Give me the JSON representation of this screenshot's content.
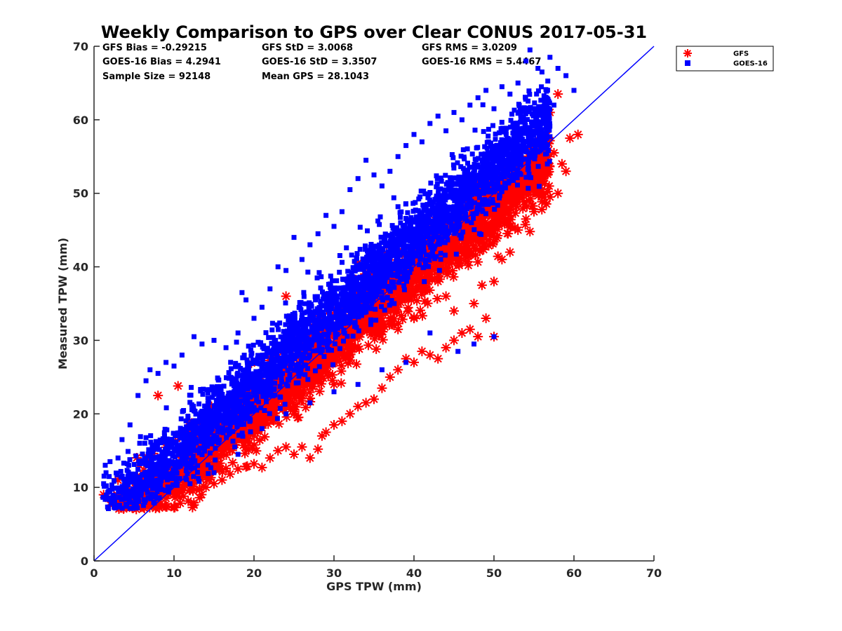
{
  "chart_data": {
    "type": "scatter",
    "title": "Weekly Comparison to GPS over Clear CONUS 2017-05-31",
    "xlabel": "GPS TPW (mm)",
    "ylabel": "Measured TPW (mm)",
    "xlim": [
      0,
      70
    ],
    "ylim": [
      0,
      70
    ],
    "xticks": [
      "0",
      "10",
      "20",
      "30",
      "40",
      "50",
      "60",
      "70"
    ],
    "yticks": [
      "0",
      "10",
      "20",
      "30",
      "40",
      "50",
      "60",
      "70"
    ],
    "grid": false,
    "legend_position": "outside-top-right",
    "reference_line": {
      "x": [
        0,
        70
      ],
      "y": [
        0,
        70
      ],
      "color": "#0000ff"
    },
    "stats": [
      [
        "GFS Bias = -0.29215",
        "GFS StD = 3.0068",
        "GFS RMS = 3.0209"
      ],
      [
        "GOES-16 Bias = 4.2941",
        "GOES-16 StD = 3.3507",
        "GOES-16 RMS = 5.4467"
      ],
      [
        "Sample Size = 92148",
        "Mean GPS = 28.1043",
        ""
      ]
    ],
    "series": [
      {
        "name": "GFS",
        "marker": "asterisk",
        "color": "#ff0000",
        "bias": -0.29215,
        "std": 3.0068,
        "points": [
          [
            1.2,
            9.0
          ],
          [
            1.8,
            8.5
          ],
          [
            2.5,
            8.2
          ],
          [
            3.0,
            11.0
          ],
          [
            3.5,
            8.6
          ],
          [
            4.0,
            9.5
          ],
          [
            4.8,
            8.0
          ],
          [
            5.5,
            7.6
          ],
          [
            6.2,
            7.3
          ],
          [
            6.8,
            8.3
          ],
          [
            7.5,
            8.8
          ],
          [
            8.2,
            9.2
          ],
          [
            9.0,
            8.5
          ],
          [
            10.0,
            9.0
          ],
          [
            11.2,
            8.8
          ],
          [
            12.0,
            9.6
          ],
          [
            12.5,
            7.6
          ],
          [
            13.2,
            8.6
          ],
          [
            14.0,
            10.0
          ],
          [
            15.0,
            10.5
          ],
          [
            16.0,
            11.0
          ],
          [
            17.0,
            11.8
          ],
          [
            18.0,
            12.5
          ],
          [
            19.0,
            12.8
          ],
          [
            20.0,
            13.2
          ],
          [
            21.0,
            12.7
          ],
          [
            22.0,
            14.0
          ],
          [
            23.0,
            15.0
          ],
          [
            24.0,
            15.5
          ],
          [
            25.0,
            14.5
          ],
          [
            26.0,
            15.5
          ],
          [
            27.0,
            14.0
          ],
          [
            28.0,
            15.2
          ],
          [
            28.5,
            17.0
          ],
          [
            29.0,
            17.5
          ],
          [
            30.0,
            18.5
          ],
          [
            31.0,
            19.0
          ],
          [
            32.0,
            20.0
          ],
          [
            33.0,
            21.0
          ],
          [
            34.0,
            21.5
          ],
          [
            35.0,
            22.0
          ],
          [
            36.0,
            23.5
          ],
          [
            37.0,
            25.0
          ],
          [
            38.0,
            26.0
          ],
          [
            39.0,
            27.5
          ],
          [
            40.0,
            27.0
          ],
          [
            41.0,
            28.5
          ],
          [
            42.0,
            28.0
          ],
          [
            43.0,
            27.5
          ],
          [
            44.0,
            29.0
          ],
          [
            45.0,
            30.0
          ],
          [
            46.0,
            31.0
          ],
          [
            47.0,
            31.5
          ],
          [
            48.0,
            30.5
          ],
          [
            49.0,
            33.0
          ],
          [
            50.0,
            30.5
          ],
          [
            47.5,
            35.0
          ],
          [
            48.5,
            37.5
          ],
          [
            50.0,
            38.0
          ],
          [
            51.0,
            41.0
          ],
          [
            52.0,
            42.0
          ],
          [
            53.0,
            45.0
          ],
          [
            54.0,
            46.5
          ],
          [
            54.5,
            44.8
          ],
          [
            55.0,
            47.5
          ],
          [
            56.0,
            50.5
          ],
          [
            57.0,
            49.5
          ],
          [
            58.0,
            50.0
          ],
          [
            58.5,
            54.0
          ],
          [
            59.0,
            53.0
          ],
          [
            57.5,
            55.5
          ],
          [
            59.5,
            57.5
          ],
          [
            60.5,
            58.0
          ],
          [
            57.0,
            61.0
          ],
          [
            58.0,
            63.5
          ],
          [
            45.0,
            34.0
          ],
          [
            40.0,
            33.0
          ],
          [
            38.0,
            31.5
          ],
          [
            30.0,
            24.0
          ],
          [
            25.0,
            20.0
          ],
          [
            20.0,
            17.0
          ],
          [
            15.0,
            13.0
          ],
          [
            10.0,
            11.5
          ],
          [
            8.0,
            22.5
          ],
          [
            10.5,
            23.8
          ],
          [
            33.0,
            40.5
          ],
          [
            24.0,
            36.0
          ],
          [
            28.0,
            33.0
          ],
          [
            35.0,
            32.0
          ],
          [
            44.0,
            36.0
          ],
          [
            52.0,
            47.0
          ]
        ]
      },
      {
        "name": "GOES-16",
        "marker": "square",
        "color": "#0000ff",
        "bias": 4.2941,
        "std": 3.3507,
        "points": [
          [
            1.5,
            12.0
          ],
          [
            2.0,
            13.5
          ],
          [
            1.2,
            10.5
          ],
          [
            3.0,
            14.0
          ],
          [
            3.5,
            16.5
          ],
          [
            4.5,
            18.5
          ],
          [
            5.5,
            22.5
          ],
          [
            6.5,
            24.5
          ],
          [
            7.0,
            26.0
          ],
          [
            8.0,
            25.5
          ],
          [
            9.0,
            27.0
          ],
          [
            10.0,
            26.5
          ],
          [
            11.0,
            28.0
          ],
          [
            12.5,
            30.5
          ],
          [
            13.5,
            29.5
          ],
          [
            15.0,
            30.0
          ],
          [
            16.5,
            29.0
          ],
          [
            18.0,
            31.0
          ],
          [
            18.5,
            36.5
          ],
          [
            19.0,
            35.5
          ],
          [
            20.0,
            33.0
          ],
          [
            21.0,
            34.5
          ],
          [
            22.0,
            37.0
          ],
          [
            23.0,
            40.0
          ],
          [
            24.0,
            39.5
          ],
          [
            25.0,
            44.0
          ],
          [
            26.0,
            41.0
          ],
          [
            27.0,
            43.0
          ],
          [
            28.0,
            44.5
          ],
          [
            29.0,
            47.0
          ],
          [
            30.0,
            45.5
          ],
          [
            31.0,
            47.5
          ],
          [
            32.0,
            50.5
          ],
          [
            33.0,
            52.0
          ],
          [
            34.0,
            54.5
          ],
          [
            35.0,
            52.5
          ],
          [
            36.0,
            51.0
          ],
          [
            37.0,
            53.0
          ],
          [
            38.0,
            55.0
          ],
          [
            39.0,
            56.5
          ],
          [
            40.0,
            58.0
          ],
          [
            41.0,
            57.0
          ],
          [
            42.0,
            59.5
          ],
          [
            43.0,
            60.5
          ],
          [
            44.0,
            58.5
          ],
          [
            45.0,
            61.0
          ],
          [
            46.0,
            60.0
          ],
          [
            47.0,
            62.0
          ],
          [
            48.0,
            63.0
          ],
          [
            49.0,
            64.0
          ],
          [
            50.0,
            61.5
          ],
          [
            51.0,
            64.5
          ],
          [
            52.0,
            63.5
          ],
          [
            53.0,
            65.0
          ],
          [
            54.0,
            68.0
          ],
          [
            54.5,
            69.5
          ],
          [
            55.5,
            67.0
          ],
          [
            56.0,
            66.5
          ],
          [
            57.0,
            68.5
          ],
          [
            58.0,
            67.0
          ],
          [
            59.0,
            66.0
          ],
          [
            60.0,
            64.0
          ],
          [
            57.5,
            62.0
          ],
          [
            55.0,
            58.0
          ],
          [
            52.0,
            55.0
          ],
          [
            50.0,
            52.0
          ],
          [
            47.0,
            50.0
          ],
          [
            44.0,
            47.0
          ],
          [
            41.0,
            44.0
          ],
          [
            38.0,
            41.0
          ],
          [
            35.0,
            38.0
          ],
          [
            32.0,
            35.0
          ],
          [
            29.0,
            32.0
          ],
          [
            26.0,
            29.0
          ],
          [
            23.0,
            26.0
          ],
          [
            20.0,
            23.0
          ],
          [
            17.0,
            20.0
          ],
          [
            14.0,
            17.0
          ],
          [
            11.0,
            14.0
          ],
          [
            8.0,
            11.0
          ],
          [
            5.0,
            9.5
          ],
          [
            50.0,
            30.5
          ],
          [
            47.5,
            29.5
          ],
          [
            45.5,
            28.5
          ],
          [
            42.0,
            31.0
          ],
          [
            39.0,
            27.0
          ],
          [
            36.0,
            26.0
          ],
          [
            33.0,
            24.0
          ],
          [
            30.0,
            23.0
          ],
          [
            27.0,
            21.5
          ],
          [
            24.0,
            20.0
          ],
          [
            21.0,
            18.0
          ],
          [
            18.0,
            14.5
          ],
          [
            15.0,
            12.0
          ],
          [
            12.0,
            10.5
          ],
          [
            9.5,
            10.0
          ]
        ]
      }
    ]
  }
}
